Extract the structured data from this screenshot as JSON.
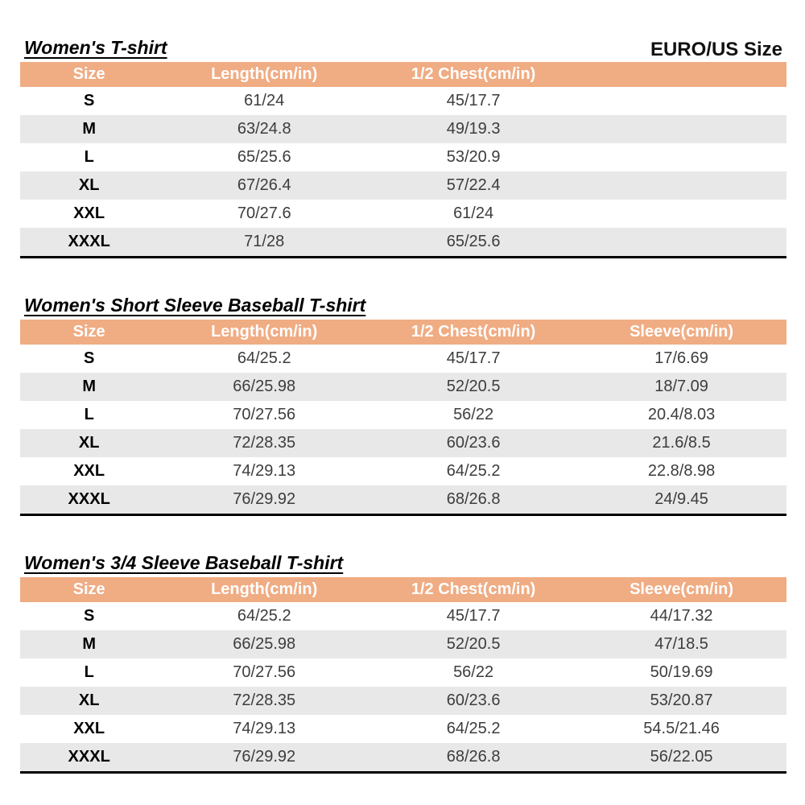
{
  "page": {
    "size_system_label": "EURO/US Size"
  },
  "colors": {
    "header_bg": "#F0AC83",
    "alt_row_bg": "#E8E8E8",
    "table_bottom_border": "#000000",
    "header_text": "#ffffff"
  },
  "tables": [
    {
      "title": "Women's T-shirt",
      "columns": [
        "Size",
        "Length(cm/in)",
        "1/2 Chest(cm/in)",
        ""
      ],
      "rows": [
        [
          "S",
          "61/24",
          "45/17.7",
          ""
        ],
        [
          "M",
          "63/24.8",
          "49/19.3",
          ""
        ],
        [
          "L",
          "65/25.6",
          "53/20.9",
          ""
        ],
        [
          "XL",
          "67/26.4",
          "57/22.4",
          ""
        ],
        [
          "XXL",
          "70/27.6",
          "61/24",
          ""
        ],
        [
          "XXXL",
          "71/28",
          "65/25.6",
          ""
        ]
      ]
    },
    {
      "title": "Women's Short Sleeve Baseball T-shirt",
      "columns": [
        "Size",
        "Length(cm/in)",
        "1/2 Chest(cm/in)",
        "Sleeve(cm/in)"
      ],
      "rows": [
        [
          "S",
          "64/25.2",
          "45/17.7",
          "17/6.69"
        ],
        [
          "M",
          "66/25.98",
          "52/20.5",
          "18/7.09"
        ],
        [
          "L",
          "70/27.56",
          "56/22",
          "20.4/8.03"
        ],
        [
          "XL",
          "72/28.35",
          "60/23.6",
          "21.6/8.5"
        ],
        [
          "XXL",
          "74/29.13",
          "64/25.2",
          "22.8/8.98"
        ],
        [
          "XXXL",
          "76/29.92",
          "68/26.8",
          "24/9.45"
        ]
      ]
    },
    {
      "title": "Women's 3/4 Sleeve Baseball T-shirt",
      "columns": [
        "Size",
        "Length(cm/in)",
        "1/2 Chest(cm/in)",
        "Sleeve(cm/in)"
      ],
      "rows": [
        [
          "S",
          "64/25.2",
          "45/17.7",
          "44/17.32"
        ],
        [
          "M",
          "66/25.98",
          "52/20.5",
          "47/18.5"
        ],
        [
          "L",
          "70/27.56",
          "56/22",
          "50/19.69"
        ],
        [
          "XL",
          "72/28.35",
          "60/23.6",
          "53/20.87"
        ],
        [
          "XXL",
          "74/29.13",
          "64/25.2",
          "54.5/21.46"
        ],
        [
          "XXXL",
          "76/29.92",
          "68/26.8",
          "56/22.05"
        ]
      ]
    }
  ]
}
